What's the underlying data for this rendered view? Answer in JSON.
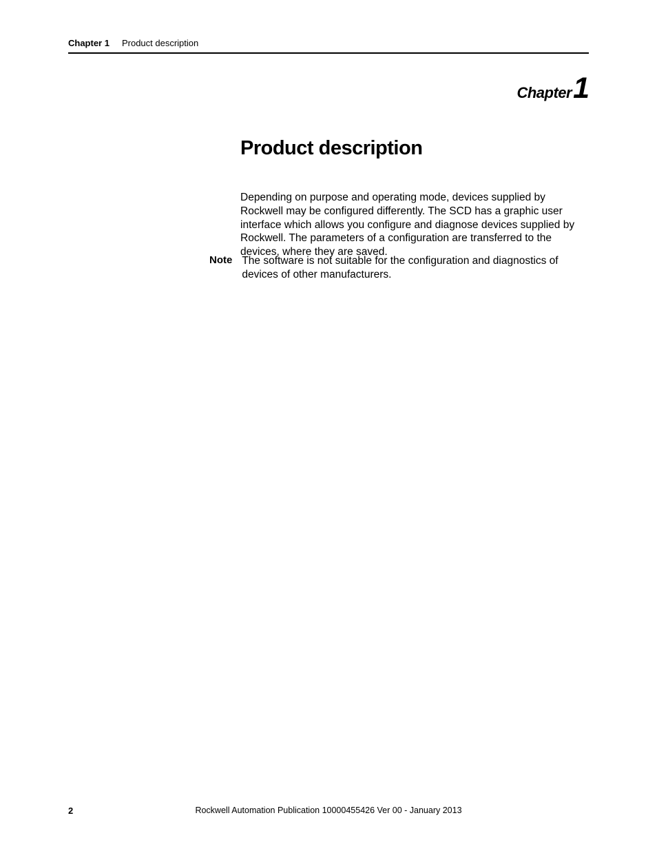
{
  "header": {
    "chapter_label": "Chapter 1",
    "title": "Product description"
  },
  "chapter_heading": {
    "word": "Chapter",
    "number": "1"
  },
  "section_title": "Product description",
  "body_paragraph": "Depending on purpose and operating mode, devices supplied by Rockwell may be configured differently. The SCD has a graphic user interface which allows you configure and diagnose devices supplied by Rockwell. The parameters of a configuration are transferred to the devices, where they are saved.",
  "note": {
    "label": "Note",
    "text": "The software is not suitable for the configuration and diagnostics of devices of other manufacturers."
  },
  "footer": {
    "page_number": "2",
    "publication": "Rockwell Automation Publication 10000455426 Ver 00 - January 2013"
  }
}
